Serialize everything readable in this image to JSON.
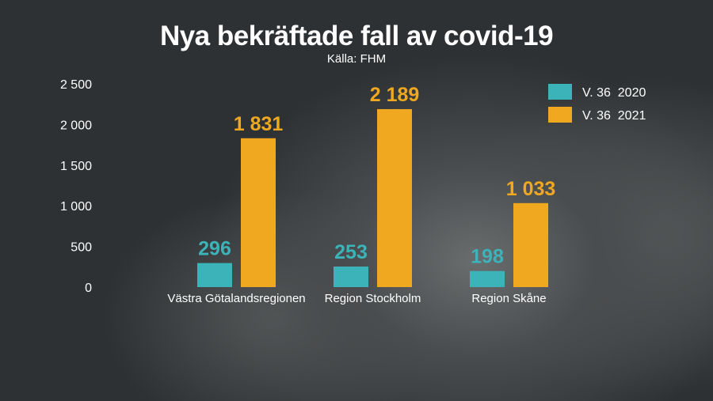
{
  "chart_data": {
    "type": "bar",
    "title": "Nya bekräftade fall av covid-19",
    "subtitle": "Källa: FHM",
    "categories": [
      "Västra Götalandsregionen",
      "Region Stockholm",
      "Region Skåne"
    ],
    "series": [
      {
        "name": "V. 36  2020",
        "values": [
          296,
          253,
          198
        ],
        "value_labels": [
          "296",
          "253",
          "198"
        ],
        "color": "#3bb3b8"
      },
      {
        "name": "V. 36  2021",
        "values": [
          1831,
          2189,
          1033
        ],
        "value_labels": [
          "1 831",
          "2 189",
          "1 033"
        ],
        "color": "#f0a820"
      }
    ],
    "y_ticks": [
      0,
      500,
      1000,
      1500,
      2000,
      2500
    ],
    "y_tick_labels": [
      "0",
      "500",
      "1 000",
      "1 500",
      "2 000",
      "2 500"
    ],
    "ylim": [
      0,
      2500
    ],
    "grid": false,
    "legend": "top-right"
  }
}
